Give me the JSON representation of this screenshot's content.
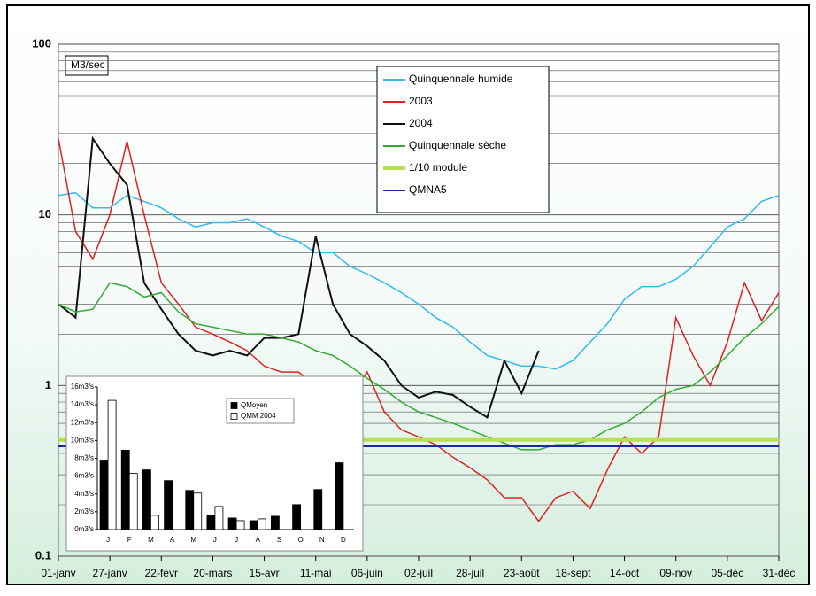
{
  "chart_data": [
    {
      "type": "line",
      "annotation": "M3/sec",
      "log_y": true,
      "grid": true,
      "legend": "top",
      "categories": [
        "01-janv",
        null,
        null,
        "27-janv",
        null,
        null,
        "22-févr",
        null,
        null,
        "20-mars",
        null,
        null,
        "15-avr",
        null,
        null,
        "11-mai",
        null,
        null,
        "06-juin",
        null,
        null,
        "02-juil",
        null,
        null,
        "28-juil",
        null,
        null,
        "23-août",
        null,
        null,
        "18-sept",
        null,
        null,
        "14-oct",
        null,
        null,
        "09-nov",
        null,
        null,
        "05-déc",
        null,
        null,
        "31-déc"
      ],
      "ylim": [
        0.1,
        100
      ],
      "yticks": [
        0.1,
        1,
        10,
        100
      ],
      "series": [
        {
          "name": "Quinquennale humide",
          "color": "#33bbee",
          "values": [
            13,
            13.5,
            11,
            11,
            13,
            12,
            11,
            9.5,
            8.5,
            9,
            9,
            9.5,
            8.5,
            7.5,
            7,
            6,
            6,
            5,
            4.5,
            4,
            3.5,
            3,
            2.5,
            2.2,
            1.8,
            1.5,
            1.4,
            1.3,
            1.3,
            1.25,
            1.4,
            1.8,
            2.3,
            3.2,
            3.8,
            3.8,
            4.2,
            5,
            6.5,
            8.5,
            9.5,
            12,
            13
          ]
        },
        {
          "name": "2003",
          "color": "#dd2222",
          "values": [
            28,
            8,
            5.5,
            10,
            27,
            10,
            4,
            3,
            2.2,
            2.0,
            1.8,
            1.6,
            1.3,
            1.2,
            1.2,
            1.0,
            0.9,
            0.9,
            1.2,
            0.7,
            0.55,
            0.5,
            0.45,
            0.38,
            0.33,
            0.28,
            0.22,
            0.22,
            0.16,
            0.22,
            0.24,
            0.19,
            0.32,
            0.5,
            0.4,
            0.5,
            2.5,
            1.5,
            1.0,
            1.8,
            4.0,
            2.4,
            3.5
          ]
        },
        {
          "name": "2004",
          "color": "#111111",
          "values": [
            3.0,
            2.5,
            28,
            20,
            15,
            4,
            2.8,
            2.0,
            1.6,
            1.5,
            1.6,
            1.5,
            1.9,
            1.9,
            2.0,
            7.5,
            3.0,
            2.0,
            1.7,
            1.4,
            1.0,
            0.85,
            0.92,
            0.88,
            0.75,
            0.65,
            1.4,
            0.9,
            1.6,
            null,
            null,
            null,
            null,
            null,
            null,
            null,
            null,
            null,
            null,
            null,
            null,
            null,
            null
          ]
        },
        {
          "name": "Quinquennale sèche",
          "color": "#33aa33",
          "values": [
            3.0,
            2.7,
            2.8,
            4.0,
            3.8,
            3.3,
            3.5,
            2.7,
            2.3,
            2.2,
            2.1,
            2.0,
            2.0,
            1.9,
            1.8,
            1.6,
            1.5,
            1.3,
            1.1,
            0.95,
            0.8,
            0.7,
            0.65,
            0.6,
            0.55,
            0.5,
            0.46,
            0.42,
            0.42,
            0.45,
            0.45,
            0.48,
            0.55,
            0.6,
            0.7,
            0.85,
            0.95,
            1.0,
            1.2,
            1.5,
            1.9,
            2.3,
            2.9
          ]
        },
        {
          "name": "1/10 module",
          "color": "#b8e04a",
          "values": [
            0.48,
            0.48,
            0.48,
            0.48,
            0.48,
            0.48,
            0.48,
            0.48,
            0.48,
            0.48,
            0.48,
            0.48,
            0.48,
            0.48,
            0.48,
            0.48,
            0.48,
            0.48,
            0.48,
            0.48,
            0.48,
            0.48,
            0.48,
            0.48,
            0.48,
            0.48,
            0.48,
            0.48,
            0.48,
            0.48,
            0.48,
            0.48,
            0.48,
            0.48,
            0.48,
            0.48,
            0.48,
            0.48,
            0.48,
            0.48,
            0.48,
            0.48,
            0.48
          ]
        },
        {
          "name": "QMNA5",
          "color": "#1a2a9a",
          "values": [
            0.44,
            0.44,
            0.44,
            0.44,
            0.44,
            0.44,
            0.44,
            0.44,
            0.44,
            0.44,
            0.44,
            0.44,
            0.44,
            0.44,
            0.44,
            0.44,
            0.44,
            0.44,
            0.44,
            0.44,
            0.44,
            0.44,
            0.44,
            0.44,
            0.44,
            0.44,
            0.44,
            0.44,
            0.44,
            0.44,
            0.44,
            0.44,
            0.44,
            0.44,
            0.44,
            0.44,
            0.44,
            0.44,
            0.44,
            0.44,
            0.44,
            0.44,
            0.44
          ]
        }
      ]
    },
    {
      "type": "bar",
      "legend": "top-right",
      "categories": [
        "J",
        "F",
        "M",
        "A",
        "M",
        "J",
        "J",
        "A",
        "S",
        "O",
        "N",
        "D"
      ],
      "ylim": [
        0,
        16
      ],
      "yticks": [
        {
          "value": 0,
          "label": "0m3/s"
        },
        {
          "value": 2,
          "label": "2m3/s"
        },
        {
          "value": 4,
          "label": "4m3/s"
        },
        {
          "value": 6,
          "label": "6m3/s"
        },
        {
          "value": 8,
          "label": "8m3/s"
        },
        {
          "value": 10,
          "label": "10m3/s"
        },
        {
          "value": 12,
          "label": "12m3/s"
        },
        {
          "value": 14,
          "label": "14m3/s"
        },
        {
          "value": 16,
          "label": "16m3/s"
        }
      ],
      "series": [
        {
          "name": "QMoyen",
          "color": "#000000",
          "values": [
            7.8,
            8.9,
            6.7,
            5.5,
            4.4,
            1.6,
            1.3,
            1.0,
            1.5,
            2.8,
            4.5,
            7.5
          ]
        },
        {
          "name": "QMM 2004",
          "color": "#ffffff",
          "values": [
            14.5,
            6.3,
            1.6,
            null,
            4.1,
            2.6,
            1.0,
            1.2,
            null,
            null,
            null,
            null
          ]
        }
      ]
    }
  ]
}
